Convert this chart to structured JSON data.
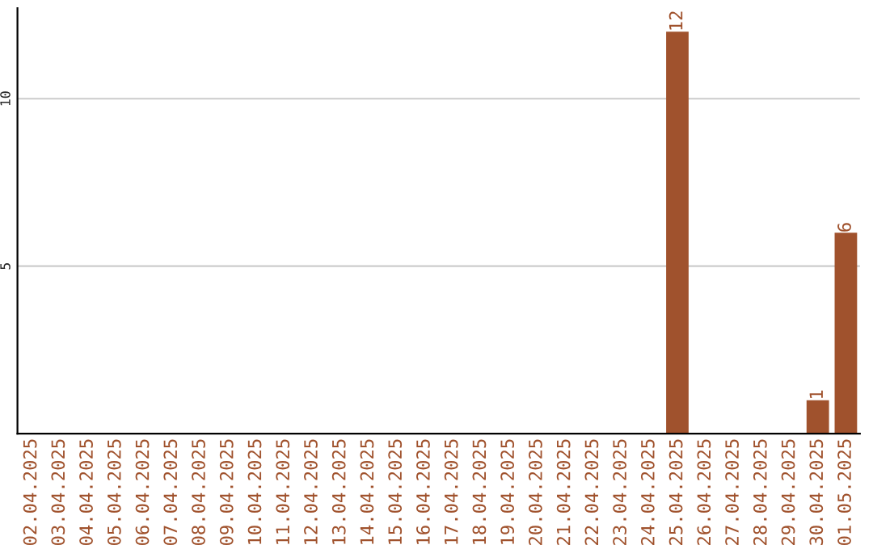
{
  "chart_data": {
    "type": "bar",
    "categories": [
      "02.04.2025",
      "03.04.2025",
      "04.04.2025",
      "05.04.2025",
      "06.04.2025",
      "07.04.2025",
      "08.04.2025",
      "09.04.2025",
      "10.04.2025",
      "11.04.2025",
      "12.04.2025",
      "13.04.2025",
      "14.04.2025",
      "15.04.2025",
      "16.04.2025",
      "17.04.2025",
      "18.04.2025",
      "19.04.2025",
      "20.04.2025",
      "21.04.2025",
      "22.04.2025",
      "23.04.2025",
      "24.04.2025",
      "25.04.2025",
      "26.04.2025",
      "27.04.2025",
      "28.04.2025",
      "29.04.2025",
      "30.04.2025",
      "01.05.2025"
    ],
    "values": [
      0,
      0,
      0,
      0,
      0,
      0,
      0,
      0,
      0,
      0,
      0,
      0,
      0,
      0,
      0,
      0,
      0,
      0,
      0,
      0,
      0,
      0,
      0,
      12,
      0,
      0,
      0,
      0,
      1,
      6
    ],
    "value_labels": [
      null,
      null,
      null,
      null,
      null,
      null,
      null,
      null,
      null,
      null,
      null,
      null,
      null,
      null,
      null,
      null,
      null,
      null,
      null,
      null,
      null,
      null,
      null,
      "12",
      null,
      null,
      null,
      null,
      "1",
      "6"
    ],
    "color": "#a0522d",
    "ylim": [
      0,
      12.7
    ],
    "yticks": [
      5,
      10
    ],
    "grid": "y"
  }
}
